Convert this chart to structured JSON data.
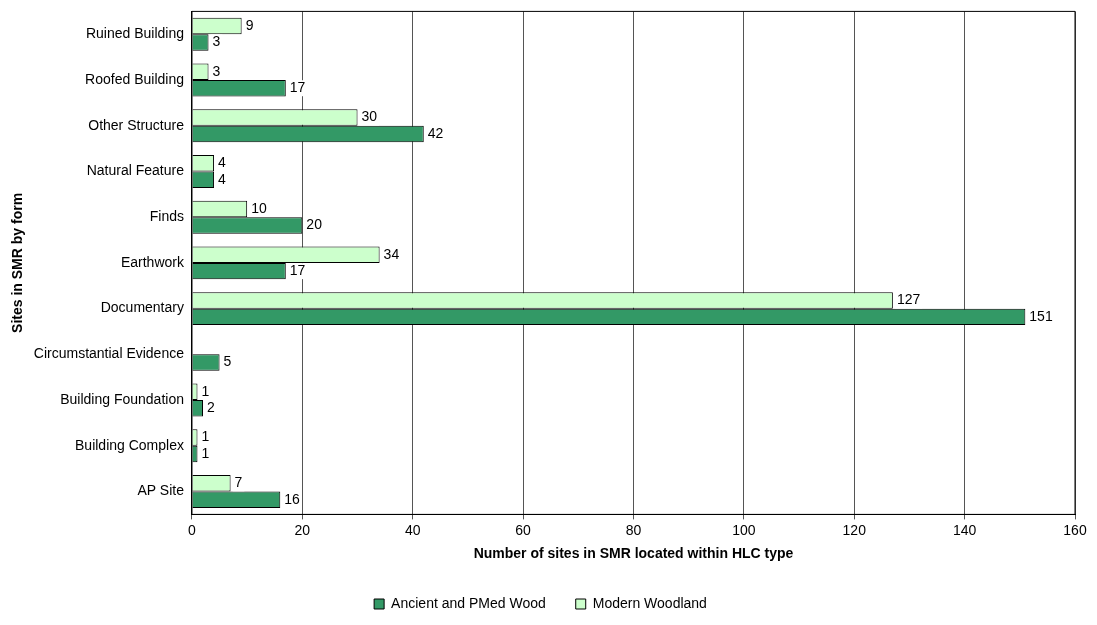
{
  "chart_data": {
    "type": "bar",
    "orientation": "horizontal",
    "xlabel": "Number of sites in SMR located within HLC type",
    "ylabel": "Sites in SMR by form",
    "categories": [
      "Ruined Building",
      "Roofed Building",
      "Other Structure",
      "Natural Feature",
      "Finds",
      "Earthwork",
      "Documentary",
      "Circumstantial Evidence",
      "Building Foundation",
      "Building Complex",
      "AP Site"
    ],
    "series": [
      {
        "name": "Ancient and PMed Wood",
        "color": "#339966",
        "values": [
          3,
          17,
          42,
          4,
          20,
          17,
          151,
          5,
          2,
          1,
          16
        ]
      },
      {
        "name": "Modern Woodland",
        "color": "#ccffcc",
        "values": [
          9,
          3,
          30,
          4,
          10,
          34,
          127,
          null,
          1,
          1,
          7
        ]
      }
    ],
    "xlim": [
      0,
      160
    ],
    "xticks": [
      0,
      20,
      40,
      60,
      80,
      100,
      120,
      140,
      160
    ],
    "grid": "x",
    "legend": "bottom",
    "data_labels": true
  }
}
